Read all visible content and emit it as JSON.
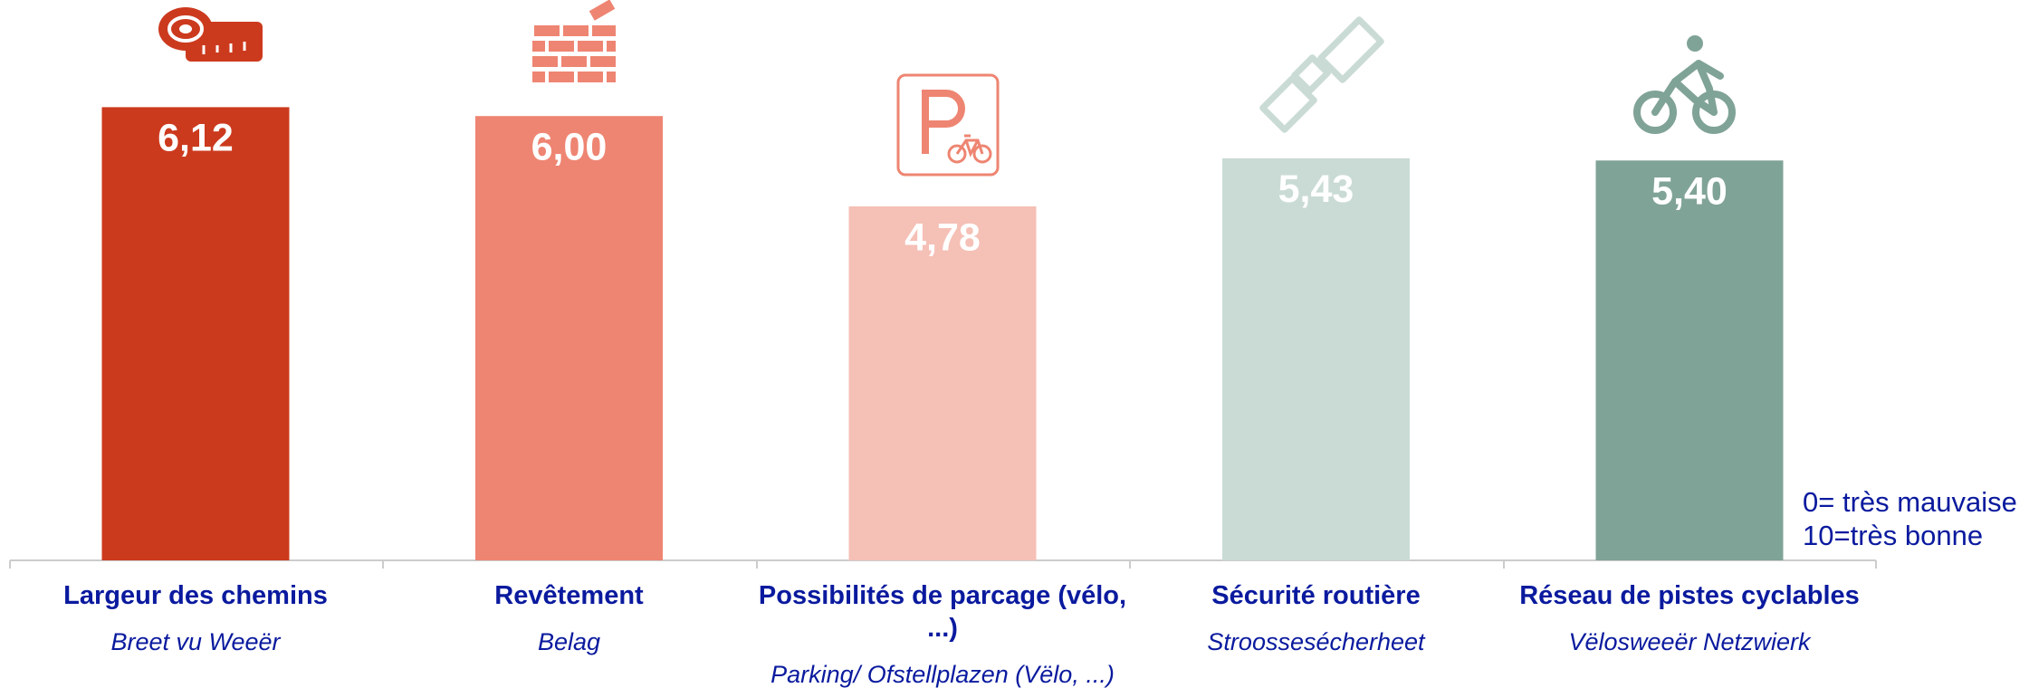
{
  "chart_data": {
    "type": "bar",
    "categories": [
      "Largeur des chemins",
      "Revêtement",
      "Possibilités de parcage (vélo, ...)",
      "Sécurité routière",
      "Réseau de pistes cyclables"
    ],
    "subcategories": [
      "Breet vu Weeër",
      "Belag",
      "Parking/ Ofstellplazen (Vëlo, ...)",
      "Stroossesécherheet",
      "Vëlosweeër Netzwierk"
    ],
    "values": [
      6.12,
      6.0,
      4.78,
      5.43,
      5.4
    ],
    "value_labels": [
      "6,12",
      "6,00",
      "4,78",
      "5,43",
      "5,40"
    ],
    "colors": [
      "#cc3a1e",
      "#ee8572",
      "#f5c0b6",
      "#cadbd5",
      "#80a397"
    ],
    "annotations": [
      "0= très mauvaise",
      "10=très bonne"
    ]
  }
}
